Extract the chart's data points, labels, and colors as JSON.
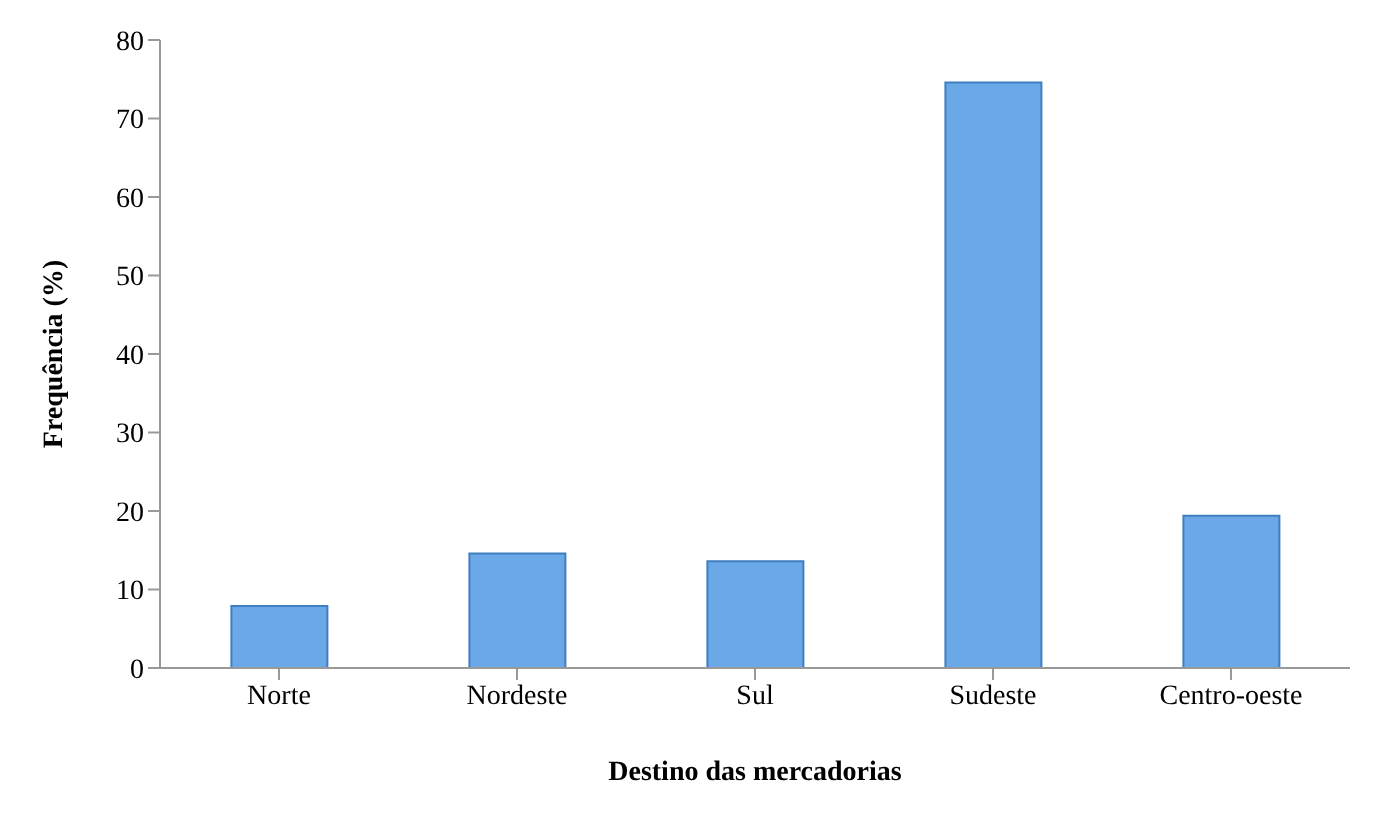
{
  "chart_data": {
    "type": "bar",
    "xlabel": "Destino das mercadorias",
    "ylabel": "Frequência (%)",
    "categories": [
      "Norte",
      "Nordeste",
      "Sul",
      "Sudeste",
      "Centro-oeste"
    ],
    "values": [
      7.9,
      14.6,
      13.6,
      74.6,
      19.4
    ],
    "color": "#6aa8e8",
    "ylim": [
      0,
      80
    ],
    "yticks": [
      0,
      10,
      20,
      30,
      40,
      50,
      60,
      70,
      80
    ],
    "grid": false
  }
}
